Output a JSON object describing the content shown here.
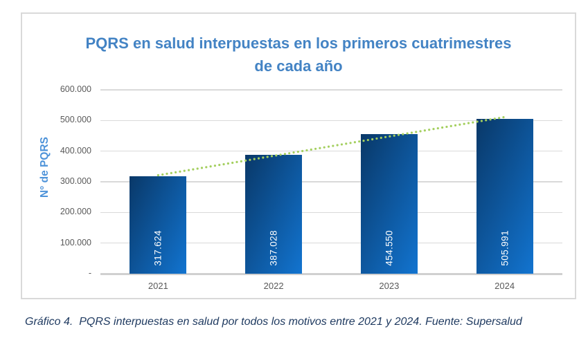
{
  "figure": {
    "caption": "Gráfico 4.  PQRS interpuestas en salud por todos los motivos entre 2021 y 2024. Fuente: Supersalud"
  },
  "chart_data": {
    "type": "bar",
    "title": "PQRS en salud interpuestas en los primeros cuatrimestres de cada año",
    "categories": [
      "2021",
      "2022",
      "2023",
      "2024"
    ],
    "values": [
      317624,
      387028,
      454550,
      505991
    ],
    "value_labels": [
      "317.624",
      "387.028",
      "454.550",
      "505.991"
    ],
    "xlabel": "",
    "ylabel": "N° de PQRS",
    "ylim": [
      0,
      600000
    ],
    "ytick_values": [
      0,
      100000,
      200000,
      300000,
      400000,
      500000,
      600000
    ],
    "ytick_labels": [
      "-",
      "100.000",
      "200.000",
      "300.000",
      "400.000",
      "500.000",
      "600.000"
    ],
    "grid": true,
    "legend": false,
    "trendline": {
      "fit": "linear",
      "style": "dotted"
    }
  },
  "colors": {
    "title": "#4383C4",
    "axis_title": "#4E93D9",
    "tick_label": "#595959",
    "gridline": "#D9D9D9",
    "baseline": "#D0D0D0",
    "frame_border": "#D9D9D9",
    "bar_gradient_start": "#093868",
    "bar_gradient_end": "#1274D0",
    "bar_label": "#FFFFFF",
    "trend": "#A4CF5F",
    "caption": "#1F3A60",
    "background": "#FFFFFF"
  }
}
